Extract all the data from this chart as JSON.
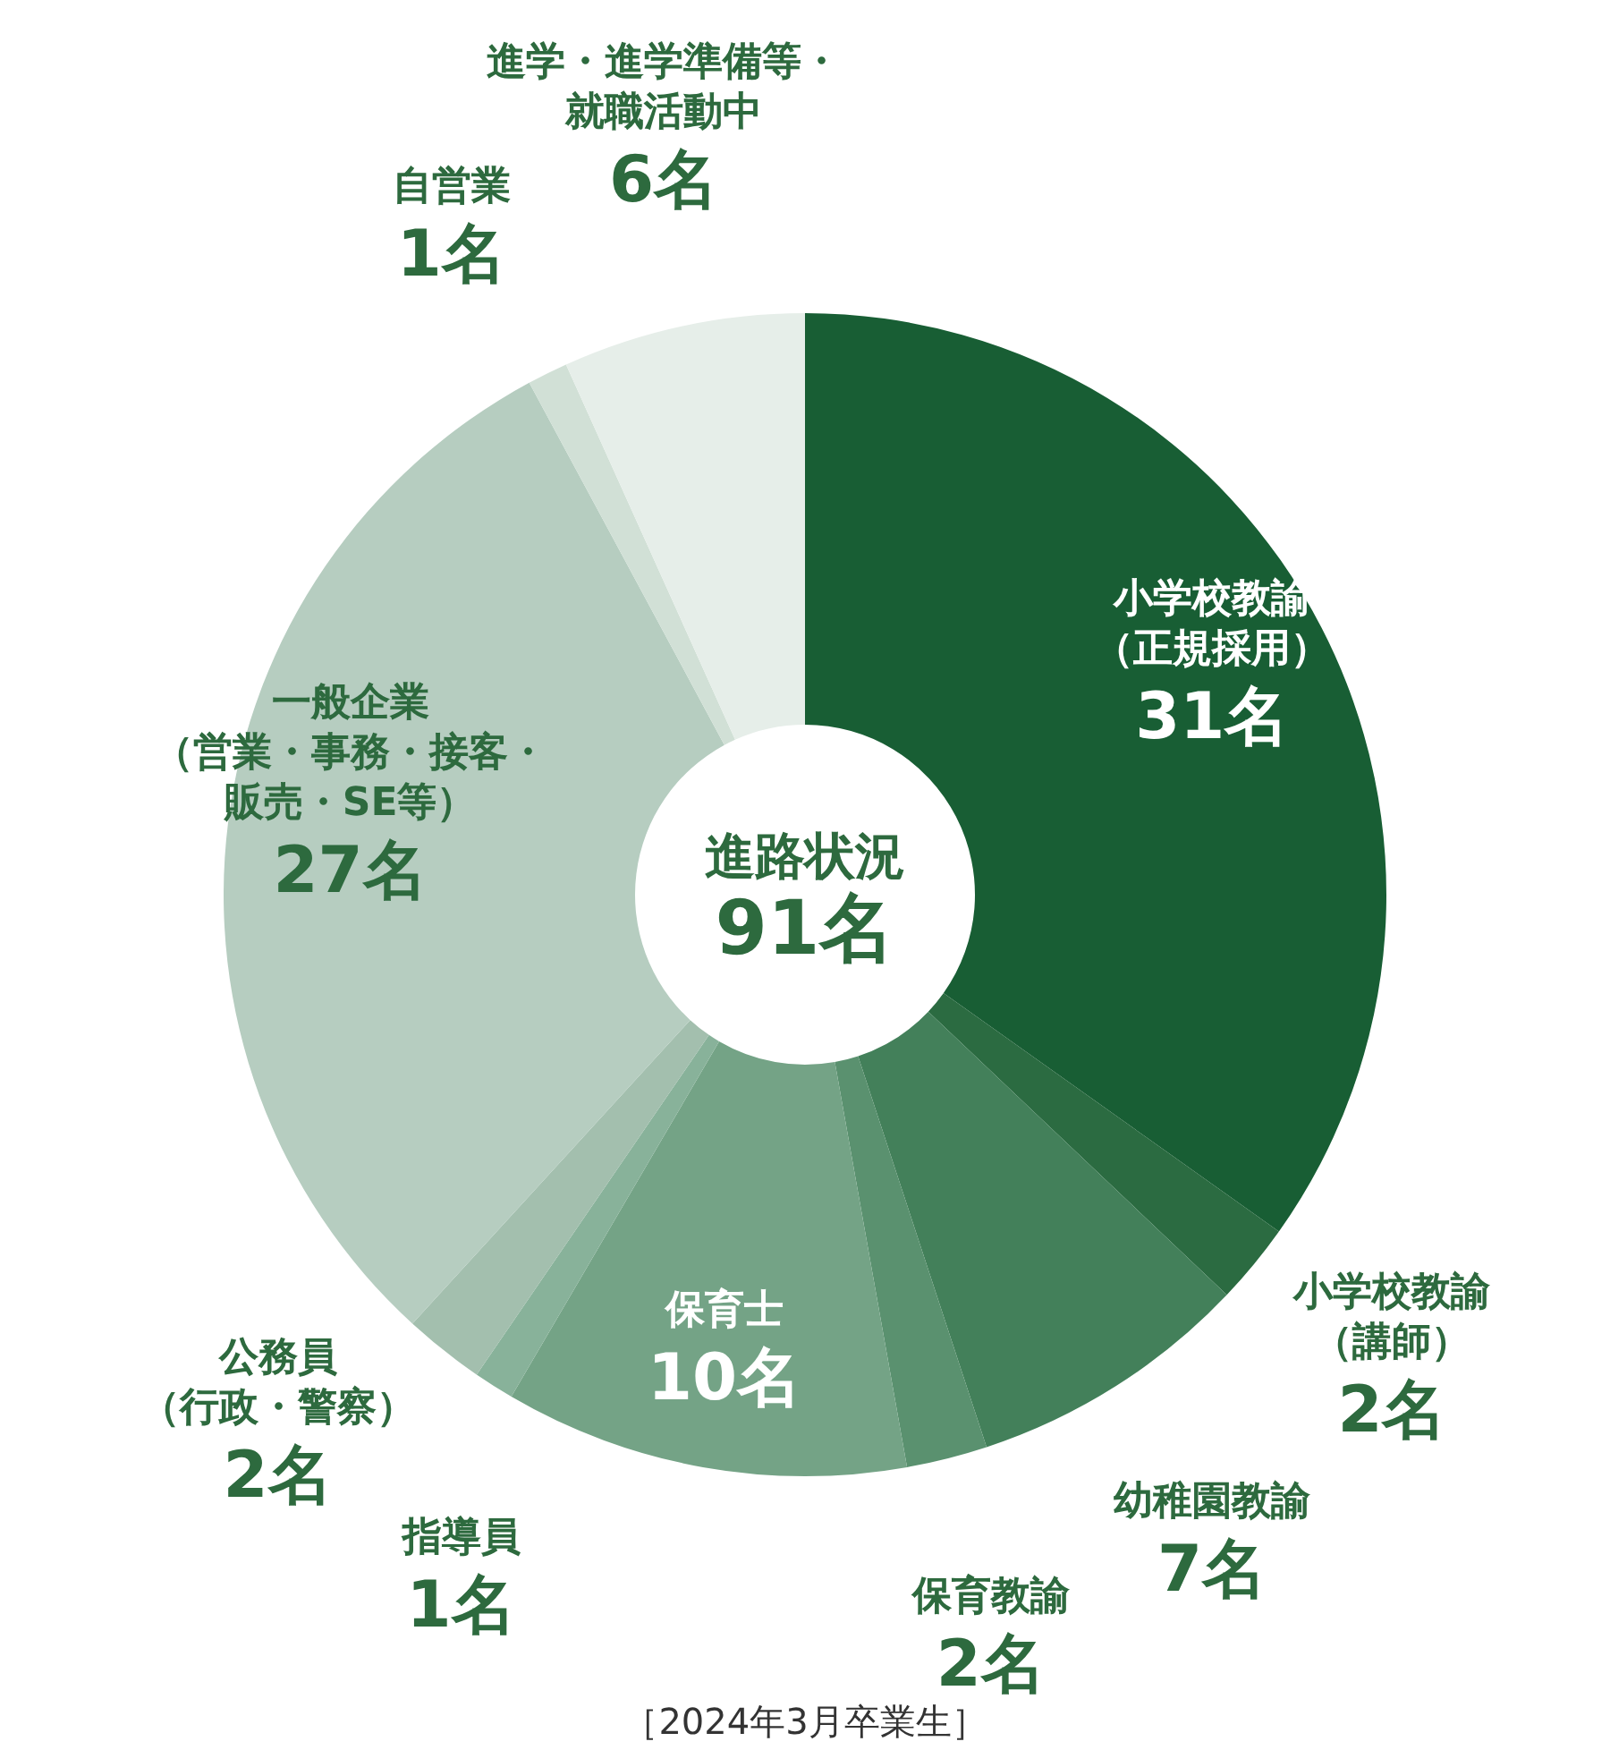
{
  "chart_data": {
    "type": "donut",
    "title": "進路状況",
    "subtitle": "91名",
    "categories": [
      "小学校教諭（正規採用）",
      "小学校教諭（講師）",
      "幼稚園教諭",
      "保育教諭",
      "保育士",
      "指導員",
      "公務員（行政・警察）",
      "一般企業（営業・事務・接客・販売・SE等）",
      "自営業",
      "進学・進学準備等・就職活動中"
    ],
    "values": [
      31,
      2,
      7,
      2,
      10,
      1,
      2,
      27,
      1,
      6
    ],
    "value_labels": [
      "31名",
      "2名",
      "7名",
      "2名",
      "10名",
      "1名",
      "2名",
      "27名",
      "1名",
      "6名"
    ],
    "colors": [
      "#185e34",
      "#2b6b41",
      "#43805a",
      "#5a916f",
      "#74a386",
      "#88b29a",
      "#a3bfae",
      "#b6cdc0",
      "#d1e0d6",
      "#e6eee9"
    ],
    "annotations": [
      "［2024年3月卒業生］"
    ]
  }
}
